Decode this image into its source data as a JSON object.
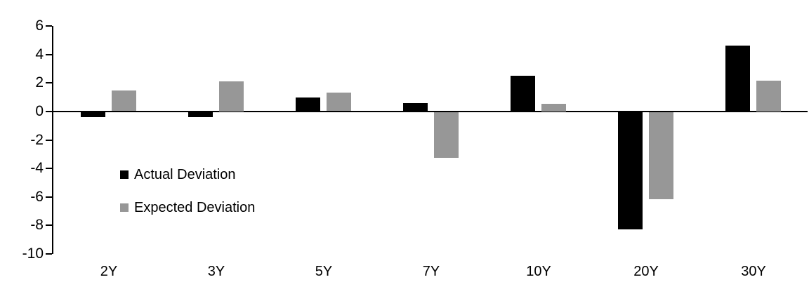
{
  "chart_data": {
    "type": "bar",
    "title": "",
    "xlabel": "",
    "ylabel": "",
    "categories": [
      "2Y",
      "3Y",
      "5Y",
      "7Y",
      "10Y",
      "20Y",
      "30Y"
    ],
    "series": [
      {
        "name": "Actual Deviation",
        "color": "#000000",
        "values": [
          -0.35,
          -0.35,
          1.0,
          0.6,
          2.5,
          -8.2,
          4.6
        ]
      },
      {
        "name": "Expected Deviation",
        "color": "#979797",
        "values": [
          1.45,
          2.1,
          1.3,
          -3.2,
          0.55,
          -6.1,
          2.15
        ]
      }
    ],
    "yticks": [
      6,
      4,
      2,
      0,
      -2,
      -4,
      -6,
      -8,
      -10
    ],
    "ylim": [
      -10,
      6
    ],
    "grid": false,
    "legend_position": "inside-left",
    "axis_color": "#000000",
    "background_color": "#ffffff"
  }
}
